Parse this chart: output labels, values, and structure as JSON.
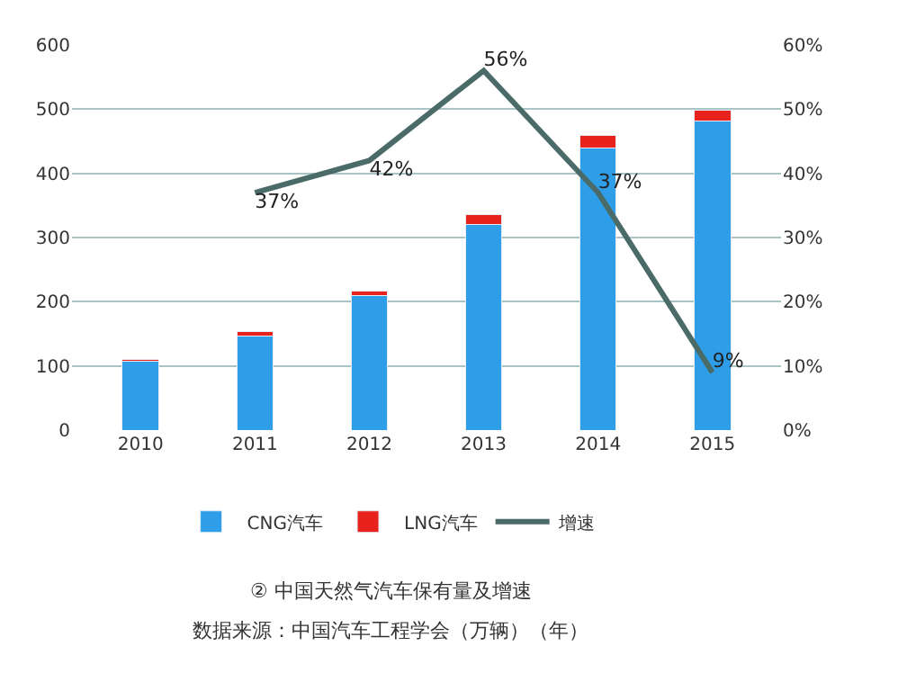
{
  "chart_data": {
    "type": "bar",
    "stacked": true,
    "categories": [
      "2010",
      "2011",
      "2012",
      "2013",
      "2014",
      "2015"
    ],
    "series": [
      {
        "name": "CNG汽车",
        "color": "#2e9ee8",
        "values": [
          107,
          146,
          209,
          321,
          440,
          481
        ]
      },
      {
        "name": "LNG汽车",
        "color": "#e8221c",
        "values": [
          3,
          7,
          7,
          15,
          19,
          18
        ]
      },
      {
        "name": "增速",
        "type": "line",
        "axis": "y2",
        "color": "#4a6b68",
        "values": [
          null,
          37,
          42,
          56,
          37,
          9
        ],
        "value_labels": [
          null,
          "37%",
          "42%",
          "56%",
          "37%",
          "9%"
        ]
      }
    ],
    "ylim": [
      0,
      600
    ],
    "yticks": [
      0,
      100,
      200,
      300,
      400,
      500,
      600
    ],
    "y2lim": [
      0,
      60
    ],
    "y2ticks": [
      {
        "value": 0,
        "label": "0%"
      },
      {
        "value": 10,
        "label": "10%"
      },
      {
        "value": 20,
        "label": "20%"
      },
      {
        "value": 30,
        "label": "30%"
      },
      {
        "value": 40,
        "label": "40%"
      },
      {
        "value": 50,
        "label": "50%"
      },
      {
        "value": 60,
        "label": "60%"
      }
    ],
    "grid": "y",
    "legend": "bottom",
    "marker": "none",
    "line_style": "solid",
    "annotations": [
      "② 中国天然气汽车保有量及增速",
      "数据来源：中国汽车工程学会（万辆）（年）"
    ]
  }
}
